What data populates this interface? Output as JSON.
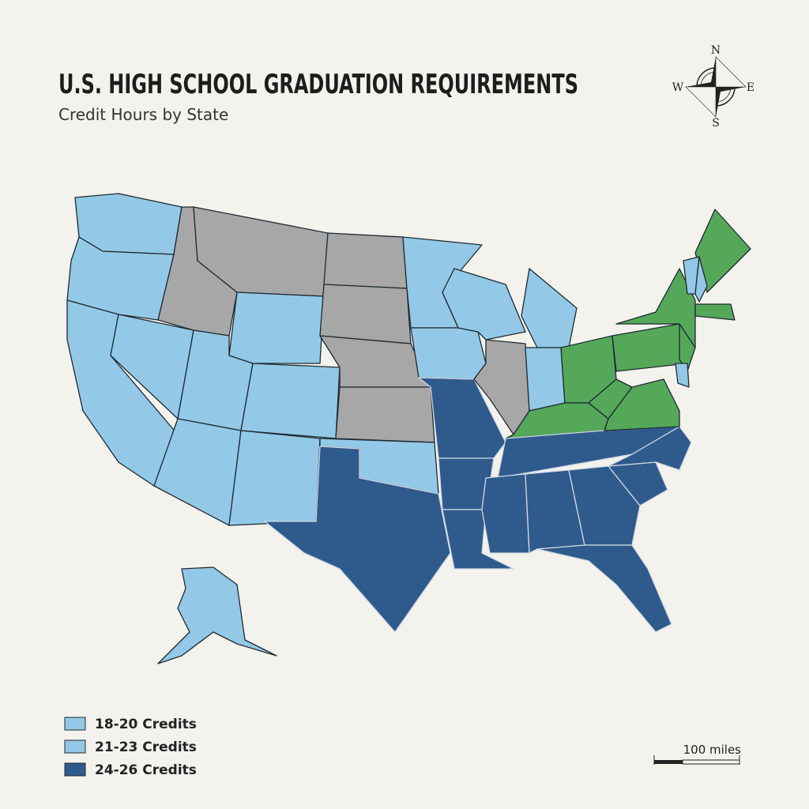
{
  "title": "U.S. HIGH SCHOOL GRADUATION REQUIREMENTS",
  "subtitle": "Credit Hours by State",
  "compass": {
    "n": "N",
    "e": "E",
    "s": "S",
    "w": "W"
  },
  "legend": {
    "items": [
      "18-20 Credits",
      "21-23 Credits",
      "24-26 Credits"
    ]
  },
  "scale": {
    "label": "100 miles"
  }
}
